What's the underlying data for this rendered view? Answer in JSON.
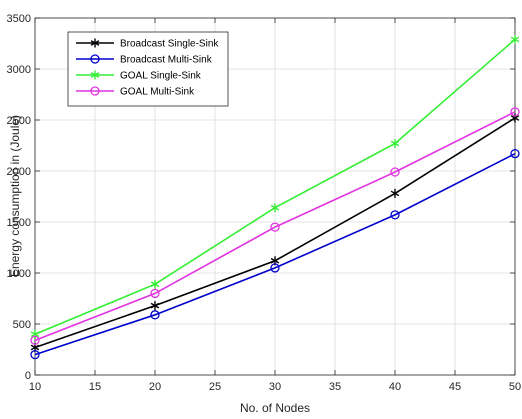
{
  "chart_data": {
    "type": "line",
    "title": "",
    "xlabel": "No. of Nodes",
    "ylabel": "Energy consumption in (Joule)",
    "x": [
      10,
      20,
      30,
      40,
      50
    ],
    "xlim": [
      10,
      50
    ],
    "ylim": [
      0,
      3500
    ],
    "xticks": [
      10,
      15,
      20,
      25,
      30,
      35,
      40,
      45,
      50
    ],
    "yticks": [
      0,
      500,
      1000,
      1500,
      2000,
      2500,
      3000,
      3500
    ],
    "grid": true,
    "legend_position": "top-left",
    "series": [
      {
        "name": "Broadcast Single-Sink",
        "values": [
          270,
          680,
          1120,
          1780,
          2520
        ],
        "color": "#000000",
        "marker": "asterisk"
      },
      {
        "name": "Broadcast Multi-Sink",
        "values": [
          200,
          590,
          1050,
          1570,
          2170
        ],
        "color": "#0000cc",
        "marker": "circle"
      },
      {
        "name": "GOAL Single-Sink",
        "values": [
          400,
          890,
          1640,
          2270,
          3290
        ],
        "color": "#33ee33",
        "marker": "asterisk"
      },
      {
        "name": "GOAL Multi-Sink",
        "values": [
          340,
          800,
          1450,
          1990,
          2580
        ],
        "color": "#e033e0",
        "marker": "circle"
      }
    ]
  }
}
